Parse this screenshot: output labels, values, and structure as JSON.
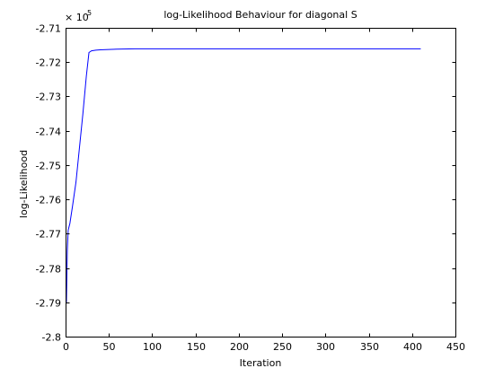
{
  "chart_data": {
    "type": "line",
    "title": "log-Likelihood Behaviour for diagonal S",
    "xlabel": "Iteration",
    "ylabel": "log-Likelihood",
    "xlim": [
      0,
      450
    ],
    "ylim": [
      -2.8,
      -2.71
    ],
    "y_exponent_label": {
      "base": "× 10",
      "exponent": "5"
    },
    "x_ticks": [
      0,
      50,
      100,
      150,
      200,
      250,
      300,
      350,
      400,
      450
    ],
    "x_tick_labels": [
      "0",
      "50",
      "100",
      "150",
      "200",
      "250",
      "300",
      "350",
      "400",
      "450"
    ],
    "y_ticks": [
      -2.8,
      -2.79,
      -2.78,
      -2.77,
      -2.76,
      -2.75,
      -2.74,
      -2.73,
      -2.72,
      -2.71
    ],
    "y_tick_labels": [
      "-2.8",
      "-2.79",
      "-2.78",
      "-2.77",
      "-2.76",
      "-2.75",
      "-2.74",
      "-2.73",
      "-2.72",
      "-2.71"
    ],
    "grid": false,
    "series": [
      {
        "color": "#0000ff",
        "x": [
          1,
          2,
          3,
          5,
          8,
          12,
          16,
          20,
          24,
          27,
          30,
          35,
          40,
          50,
          60,
          80,
          100,
          150,
          200,
          300,
          410
        ],
        "y": [
          -2.79,
          -2.775,
          -2.769,
          -2.767,
          -2.762,
          -2.755,
          -2.745,
          -2.735,
          -2.724,
          -2.7172,
          -2.7167,
          -2.7165,
          -2.7164,
          -2.7163,
          -2.7162,
          -2.7161,
          -2.7161,
          -2.7161,
          -2.7161,
          -2.7161,
          -2.7161
        ]
      }
    ]
  }
}
